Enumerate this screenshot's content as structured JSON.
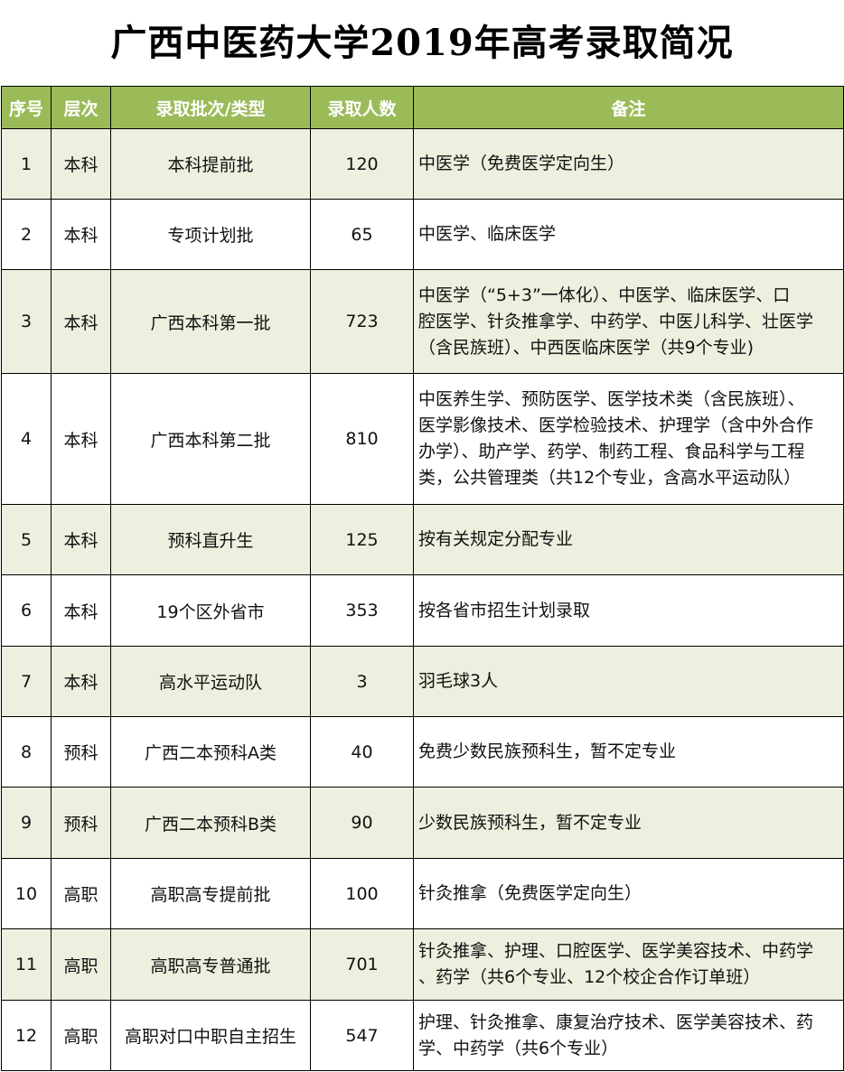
{
  "title": "广西中医药大学2019年高考录取简况",
  "colors": {
    "header_bg": "#9BBB59",
    "odd_row_bg": "#EBF1DE"
  },
  "headers": [
    "序号",
    "层次",
    "录取批次/类型",
    "录取人数",
    "备注"
  ],
  "rows": [
    {
      "no": "1",
      "level": "本科",
      "batch": "本科提前批",
      "count": "120",
      "note": [
        "中医学（免费医学定向生）"
      ]
    },
    {
      "no": "2",
      "level": "本科",
      "batch": "专项计划批",
      "count": "65",
      "note": [
        "中医学、临床医学"
      ]
    },
    {
      "no": "3",
      "level": "本科",
      "batch": "广西本科第一批",
      "count": "723",
      "note": [
        "中医学（“5+3”一体化）、中医学、临床医学、口",
        "腔医学、针灸推拿学、中药学、中医儿科学、壮医学",
        "（含民族班）、中西医临床医学（共9个专业)"
      ]
    },
    {
      "no": "4",
      "level": "本科",
      "batch": "广西本科第二批",
      "count": "810",
      "note": [
        "中医养生学、预防医学、医学技术类（含民族班）、",
        "医学影像技术、医学检验技术、护理学（含中外合作",
        "办学）、助产学、药学、制药工程、食品科学与工程",
        "类，公共管理类（共12个专业，含高水平运动队）"
      ]
    },
    {
      "no": "5",
      "level": "本科",
      "batch": "预科直升生",
      "count": "125",
      "note": [
        "按有关规定分配专业"
      ]
    },
    {
      "no": "6",
      "level": "本科",
      "batch": "19个区外省市",
      "count": "353",
      "note": [
        "按各省市招生计划录取"
      ]
    },
    {
      "no": "7",
      "level": "本科",
      "batch": "高水平运动队",
      "count": "3",
      "note": [
        "羽毛球3人"
      ]
    },
    {
      "no": "8",
      "level": "预科",
      "batch": "广西二本预科A类",
      "count": "40",
      "note": [
        "免费少数民族预科生，暂不定专业"
      ]
    },
    {
      "no": "9",
      "level": "预科",
      "batch": "广西二本预科B类",
      "count": "90",
      "note": [
        "少数民族预科生，暂不定专业"
      ]
    },
    {
      "no": "10",
      "level": "高职",
      "batch": "高职高专提前批",
      "count": "100",
      "note": [
        "针灸推拿（免费医学定向生）"
      ]
    },
    {
      "no": "11",
      "level": "高职",
      "batch": "高职高专普通批",
      "count": "701",
      "note": [
        "针灸推拿、护理、口腔医学、医学美容技术、中药学",
        "、药学（共6个专业、12个校企合作订单班）"
      ]
    },
    {
      "no": "12",
      "level": "高职",
      "batch": "高职对口中职自主招生",
      "count": "547",
      "note": [
        "护理、针灸推拿、康复治疗技术、医学美容技术、药",
        "学、中药学（共6个专业）"
      ]
    }
  ]
}
